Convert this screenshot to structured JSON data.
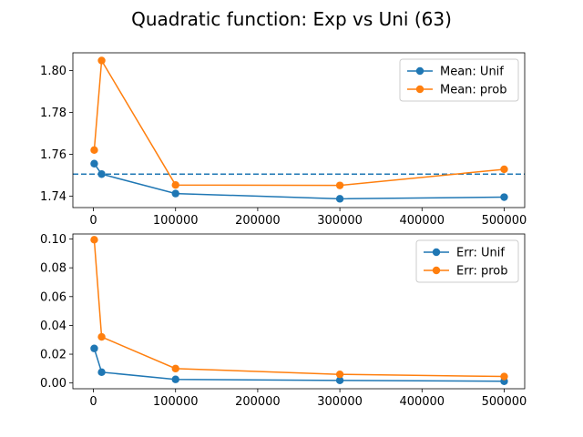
{
  "figure": {
    "title": "Quadratic function: Exp vs Uni (63)"
  },
  "chart_data": [
    {
      "type": "line",
      "title": "",
      "xlabel": "",
      "ylabel": "",
      "x": [
        1000,
        10000,
        100000,
        300000,
        500000
      ],
      "xlim": [
        -25000,
        525000
      ],
      "ylim": [
        1.7345,
        1.8085
      ],
      "xticks": [
        0,
        100000,
        200000,
        300000,
        400000,
        500000
      ],
      "xtick_labels": [
        "0",
        "100000",
        "200000",
        "300000",
        "400000",
        "500000"
      ],
      "yticks": [
        1.74,
        1.76,
        1.78,
        1.8
      ],
      "ytick_labels": [
        "1.74",
        "1.76",
        "1.78",
        "1.80"
      ],
      "reference_line": {
        "y": 1.7505,
        "style": "dashed",
        "color": "#1f77b4"
      },
      "grid": false,
      "legend_position": "top-right",
      "series": [
        {
          "name": "Mean: Unif",
          "color": "#1f77b4",
          "values": [
            1.7555,
            1.7505,
            1.7412,
            1.7387,
            1.7395
          ]
        },
        {
          "name": "Mean: prob",
          "color": "#ff7f0e",
          "values": [
            1.762,
            1.8048,
            1.7453,
            1.7451,
            1.7528
          ]
        }
      ]
    },
    {
      "type": "line",
      "title": "",
      "xlabel": "",
      "ylabel": "",
      "x": [
        1000,
        10000,
        100000,
        300000,
        500000
      ],
      "xlim": [
        -25000,
        525000
      ],
      "ylim": [
        -0.004,
        0.1035
      ],
      "xticks": [
        0,
        100000,
        200000,
        300000,
        400000,
        500000
      ],
      "xtick_labels": [
        "0",
        "100000",
        "200000",
        "300000",
        "400000",
        "500000"
      ],
      "yticks": [
        0.0,
        0.02,
        0.04,
        0.06,
        0.08,
        0.1
      ],
      "ytick_labels": [
        "0.00",
        "0.02",
        "0.04",
        "0.06",
        "0.08",
        "0.10"
      ],
      "grid": false,
      "legend_position": "top-right",
      "series": [
        {
          "name": "Err: Unif",
          "color": "#1f77b4",
          "values": [
            0.024,
            0.0075,
            0.0025,
            0.0018,
            0.0012
          ]
        },
        {
          "name": "Err: prob",
          "color": "#ff7f0e",
          "values": [
            0.0995,
            0.032,
            0.01,
            0.006,
            0.0045
          ]
        }
      ]
    }
  ]
}
